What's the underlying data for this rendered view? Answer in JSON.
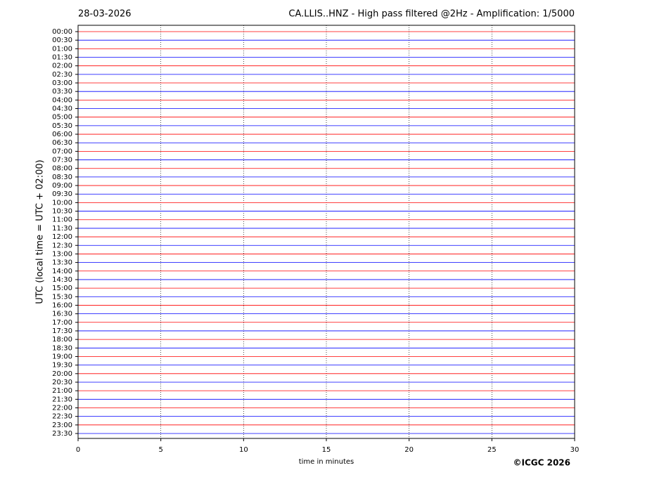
{
  "chart_data": {
    "type": "helicorder",
    "date": "28-03-2026",
    "title": "CA.LLIS..HNZ - High pass filtered @2Hz - Amplification: 1/5000",
    "xlabel": "time in minutes",
    "ylabel": "UTC (local time = UTC + 02:00)",
    "credit": "©ICGC 2026",
    "categories": [
      "00:00",
      "00:30",
      "01:00",
      "01:30",
      "02:00",
      "02:30",
      "03:00",
      "03:30",
      "04:00",
      "04:30",
      "05:00",
      "05:30",
      "06:00",
      "06:30",
      "07:00",
      "07:30",
      "08:00",
      "08:30",
      "09:00",
      "09:30",
      "10:00",
      "10:30",
      "11:00",
      "11:30",
      "12:00",
      "12:30",
      "13:00",
      "13:30",
      "14:00",
      "14:30",
      "15:00",
      "15:30",
      "16:00",
      "16:30",
      "17:00",
      "17:30",
      "18:00",
      "18:30",
      "19:00",
      "19:30",
      "20:00",
      "20:30",
      "21:00",
      "21:30",
      "22:00",
      "22:30",
      "23:00",
      "23:30"
    ],
    "xlim": [
      0,
      30
    ],
    "xticks": [
      0,
      5,
      10,
      15,
      20,
      25,
      30
    ],
    "trace_colors": [
      "#ff0000",
      "#0000ff"
    ],
    "grid": true
  }
}
